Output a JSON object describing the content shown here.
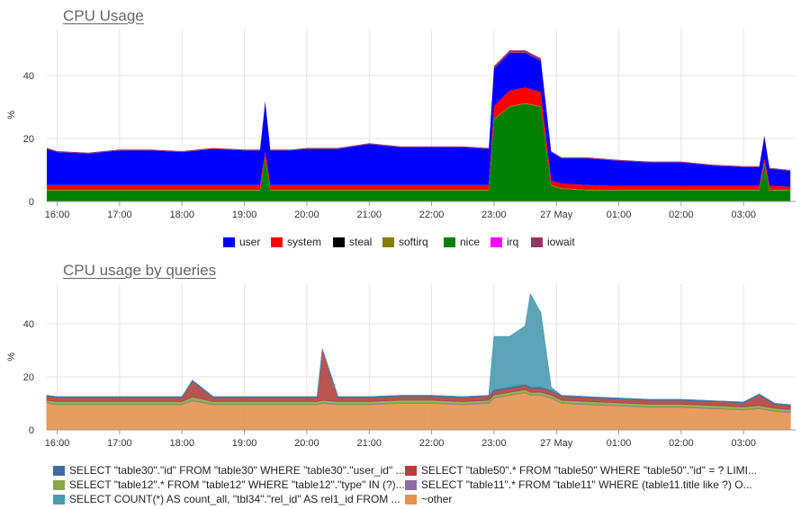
{
  "chart_data": [
    {
      "type": "area",
      "stacked": true,
      "title": "CPU Usage",
      "xlabel": "",
      "ylabel": "%",
      "ylim": [
        0,
        55
      ],
      "yticks": [
        0,
        20,
        40
      ],
      "xticks": [
        "16:00",
        "17:00",
        "18:00",
        "19:00",
        "20:00",
        "21:00",
        "22:00",
        "23:00",
        "27 May",
        "01:00",
        "02:00",
        "03:00"
      ],
      "grid": true,
      "legend_position": "bottom",
      "x": [
        "15:50",
        "16:00",
        "16:30",
        "17:00",
        "17:30",
        "18:00",
        "18:30",
        "19:00",
        "19:15",
        "19:20",
        "19:25",
        "19:45",
        "20:00",
        "20:30",
        "21:00",
        "21:30",
        "22:00",
        "22:30",
        "22:55",
        "23:00",
        "23:15",
        "23:30",
        "23:45",
        "23:55",
        "00:05",
        "00:30",
        "01:00",
        "01:30",
        "02:00",
        "02:30",
        "03:00",
        "03:15",
        "03:20",
        "03:25",
        "03:45"
      ],
      "series": [
        {
          "name": "user",
          "color": "#0000ff",
          "values": [
            11.5,
            10.5,
            10,
            11,
            11,
            10.5,
            11.5,
            11,
            11,
            16,
            11,
            11,
            11.5,
            11.5,
            13,
            12,
            12,
            12,
            11.5,
            12,
            12,
            11,
            10,
            9,
            8,
            8.5,
            8,
            7.5,
            7.5,
            6.5,
            6,
            6,
            7,
            5.5,
            5
          ]
        },
        {
          "name": "system",
          "color": "#ff0000",
          "values": [
            1.5,
            1.5,
            1.5,
            1.5,
            1.5,
            1.5,
            1.5,
            1.5,
            1.5,
            1.5,
            1.5,
            1.5,
            1.5,
            1.5,
            1.5,
            1.5,
            1.5,
            1.5,
            1.5,
            4,
            5,
            5,
            4.5,
            1.5,
            1.5,
            1.5,
            1.2,
            1.2,
            1.2,
            1.2,
            1.2,
            1.2,
            1.5,
            1.2,
            1
          ]
        },
        {
          "name": "steal",
          "color": "#000000",
          "values": [
            0,
            0,
            0,
            0,
            0,
            0,
            0,
            0,
            0,
            0,
            0,
            0,
            0,
            0,
            0,
            0,
            0,
            0,
            0,
            0,
            0,
            0,
            0,
            0,
            0,
            0,
            0,
            0,
            0,
            0,
            0,
            0,
            0,
            0,
            0
          ]
        },
        {
          "name": "softirq",
          "color": "#808000",
          "values": [
            0.2,
            0.2,
            0.2,
            0.2,
            0.2,
            0.2,
            0.2,
            0.2,
            0.2,
            0.2,
            0.2,
            0.2,
            0.2,
            0.2,
            0.2,
            0.2,
            0.2,
            0.2,
            0.2,
            0.2,
            0.2,
            0.2,
            0.2,
            0.2,
            0.2,
            0.2,
            0.2,
            0.2,
            0.2,
            0.2,
            0.2,
            0.2,
            0.2,
            0.2,
            0.2
          ]
        },
        {
          "name": "nice",
          "color": "#008000",
          "values": [
            3.5,
            3.5,
            3.5,
            3.5,
            3.5,
            3.5,
            3.5,
            3.5,
            3.5,
            14,
            3.5,
            3.5,
            3.5,
            3.5,
            3.5,
            3.5,
            3.5,
            3.5,
            3.5,
            26,
            30,
            31,
            30,
            5,
            4,
            3.5,
            3.5,
            3.5,
            3.5,
            3.5,
            3.5,
            3.5,
            12,
            3.5,
            3.5
          ]
        },
        {
          "name": "irq",
          "color": "#ff00ff",
          "values": [
            0,
            0,
            0,
            0,
            0,
            0,
            0,
            0,
            0,
            0,
            0,
            0,
            0,
            0,
            0,
            0,
            0,
            0,
            0,
            0,
            0,
            0,
            0,
            0,
            0,
            0,
            0,
            0,
            0,
            0,
            0,
            0,
            0,
            0,
            0
          ]
        },
        {
          "name": "iowait",
          "color": "#993366",
          "values": [
            0.3,
            0.3,
            0.3,
            0.3,
            0.3,
            0.3,
            0.3,
            0.3,
            0.3,
            0.3,
            0.3,
            0.3,
            0.3,
            0.3,
            0.3,
            0.3,
            0.3,
            0.3,
            0.3,
            0.8,
            0.8,
            0.8,
            0.8,
            0.3,
            0.3,
            0.3,
            0.3,
            0.3,
            0.3,
            0.3,
            0.3,
            0.3,
            0.3,
            0.3,
            0.3
          ]
        }
      ]
    },
    {
      "type": "area",
      "stacked": true,
      "title": "CPU usage by queries",
      "xlabel": "",
      "ylabel": "%",
      "ylim": [
        0,
        55
      ],
      "yticks": [
        0,
        20,
        40
      ],
      "xticks": [
        "16:00",
        "17:00",
        "18:00",
        "19:00",
        "20:00",
        "21:00",
        "22:00",
        "23:00",
        "27 May",
        "01:00",
        "02:00",
        "03:00"
      ],
      "grid": true,
      "legend_position": "bottom",
      "x": [
        "15:50",
        "16:00",
        "16:30",
        "17:00",
        "17:30",
        "18:00",
        "18:10",
        "18:30",
        "19:00",
        "19:30",
        "20:00",
        "20:10",
        "20:15",
        "20:30",
        "21:00",
        "21:30",
        "22:00",
        "22:30",
        "22:55",
        "23:00",
        "23:15",
        "23:30",
        "23:35",
        "23:45",
        "23:55",
        "00:05",
        "00:30",
        "01:00",
        "01:30",
        "02:00",
        "02:30",
        "03:00",
        "03:15",
        "03:30",
        "03:45"
      ],
      "series": [
        {
          "name": "~other",
          "color": "#e6924f",
          "values": [
            10,
            9.5,
            9.5,
            9.5,
            9.5,
            9.5,
            11,
            9.5,
            9.5,
            9.5,
            9.5,
            9.5,
            10,
            9.5,
            9.5,
            10,
            10,
            9.5,
            10,
            12,
            13,
            14,
            13,
            13,
            12,
            10,
            9.5,
            9,
            8.5,
            8.5,
            8,
            7.5,
            8,
            7,
            6.5
          ]
        },
        {
          "name": "SELECT \"table11\".* FROM \"table11\" WHERE (table11.title like ?) O...",
          "color": "#8d6ba5",
          "values": [
            0.2,
            0.2,
            0.2,
            0.2,
            0.2,
            0.2,
            0.2,
            0.2,
            0.2,
            0.2,
            0.2,
            0.2,
            0.2,
            0.2,
            0.2,
            0.2,
            0.2,
            0.2,
            0.2,
            0.2,
            0.2,
            0.2,
            0.2,
            0.2,
            0.2,
            0.2,
            0.2,
            0.2,
            0.2,
            0.2,
            0.2,
            0.2,
            0.2,
            0.2,
            0.2
          ]
        },
        {
          "name": "SELECT \"table12\".* FROM \"table12\" WHERE \"table12\".\"type\" IN (?)...",
          "color": "#8aa84a",
          "values": [
            1,
            1,
            1,
            1,
            1,
            1,
            1.2,
            1,
            1,
            1,
            1,
            1,
            1,
            1,
            1,
            1,
            1,
            1,
            1,
            1,
            1,
            1,
            1,
            1,
            1,
            1,
            1,
            1,
            1,
            1,
            1,
            1,
            1,
            1,
            1
          ]
        },
        {
          "name": "SELECT \"table50\".* FROM \"table50\" WHERE \"table50\".\"id\" = ? LIMI...",
          "color": "#b0413e",
          "values": [
            1.5,
            1.5,
            1.5,
            1.5,
            1.5,
            1.5,
            6,
            1.5,
            1.5,
            1.5,
            1.5,
            1.5,
            19,
            1.5,
            1.5,
            1.5,
            1.5,
            1.5,
            1.5,
            1.5,
            1.5,
            1.5,
            1.5,
            1.5,
            1.5,
            1.5,
            1.5,
            1.5,
            1.5,
            1.5,
            1.5,
            1.5,
            4,
            1.5,
            1.5
          ]
        },
        {
          "name": "SELECT \"table30\".\"id\" FROM \"table30\" WHERE \"table30\".\"user_id\" ...",
          "color": "#3e6aa5",
          "values": [
            0.3,
            0.3,
            0.3,
            0.3,
            0.3,
            0.3,
            0.3,
            0.3,
            0.3,
            0.3,
            0.3,
            0.3,
            0.3,
            0.3,
            0.3,
            0.3,
            0.3,
            0.3,
            0.3,
            0.5,
            0.5,
            0.5,
            0.5,
            0.5,
            0.3,
            0.3,
            0.3,
            0.3,
            0.3,
            0.3,
            0.3,
            0.3,
            0.3,
            0.3,
            0.3
          ]
        },
        {
          "name": "SELECT COUNT(*) AS count_all, \"tbl34\".\"rel_id\" AS rel1_id FROM ...",
          "color": "#4a9bb0",
          "values": [
            0,
            0,
            0,
            0,
            0,
            0,
            0,
            0,
            0,
            0,
            0,
            0,
            0,
            0,
            0,
            0,
            0,
            0,
            0,
            20,
            19,
            22,
            35,
            28,
            1,
            0,
            0,
            0,
            0,
            0,
            0,
            0,
            0,
            0,
            0
          ]
        }
      ]
    }
  ]
}
